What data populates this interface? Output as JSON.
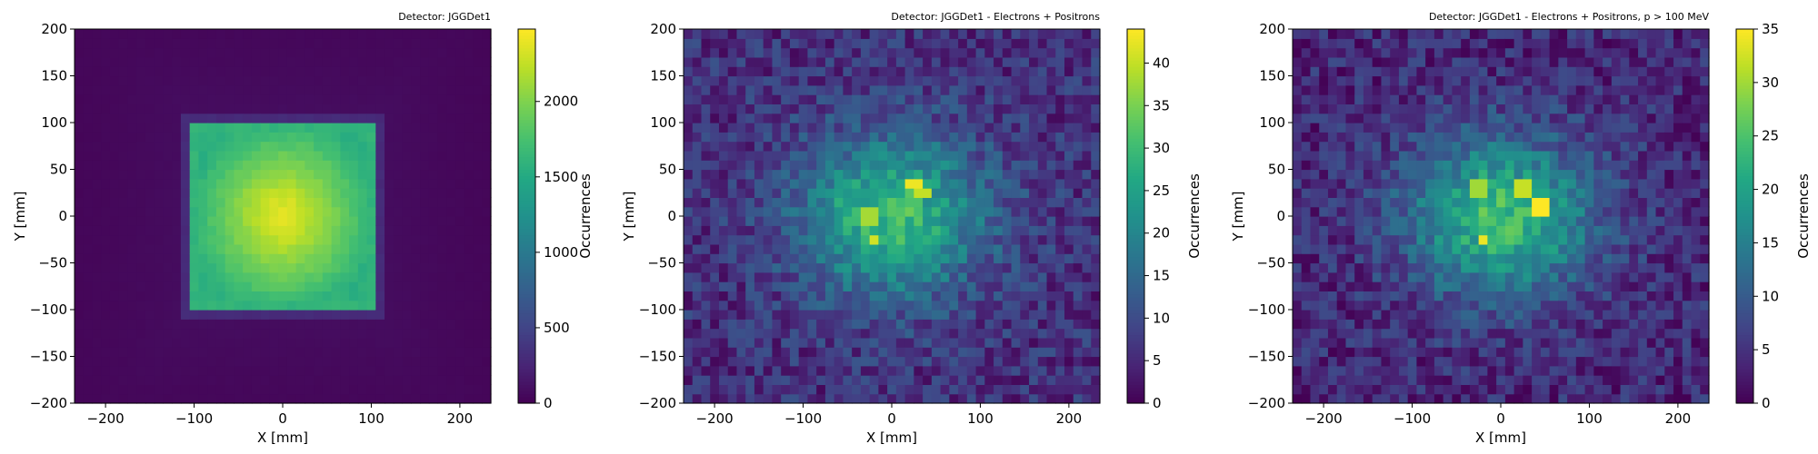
{
  "chart_data": [
    {
      "type": "heatmap",
      "title": "Detector: JGGDet1",
      "xlabel": "X [mm]",
      "ylabel": "Y [mm]",
      "colorbar_label": "Occurrences",
      "colormap": "viridis",
      "xlim": [
        -235,
        235
      ],
      "ylim": [
        -200,
        200
      ],
      "xticks": [
        -200,
        -100,
        0,
        100,
        200
      ],
      "yticks": [
        -200,
        -150,
        -100,
        -50,
        0,
        50,
        100,
        150,
        200
      ],
      "clim": [
        0,
        2480
      ],
      "cticks": [
        0,
        500,
        1000,
        1500,
        2000
      ],
      "bins": [
        47,
        40
      ],
      "distribution": {
        "shape": "square",
        "x_range": [
          -100,
          100
        ],
        "y_range": [
          -100,
          100
        ],
        "center": [
          0,
          0
        ],
        "peak": 2450,
        "edge": 1650,
        "halo": 300,
        "background": 80
      }
    },
    {
      "type": "heatmap",
      "title": "Detector: JGGDet1 - Electrons + Positrons",
      "xlabel": "X [mm]",
      "ylabel": "Y [mm]",
      "colorbar_label": "Occurrences",
      "colormap": "viridis",
      "xlim": [
        -235,
        235
      ],
      "ylim": [
        -200,
        200
      ],
      "xticks": [
        -200,
        -100,
        0,
        100,
        200
      ],
      "yticks": [
        -200,
        -150,
        -100,
        -50,
        0,
        50,
        100,
        150,
        200
      ],
      "clim": [
        0,
        44
      ],
      "cticks": [
        0,
        5,
        10,
        15,
        20,
        25,
        30,
        35,
        40
      ],
      "bins": [
        47,
        40
      ],
      "distribution": {
        "shape": "gaussian",
        "center": [
          0,
          0
        ],
        "sigma": [
          75,
          60
        ],
        "peak": 30,
        "background": 6,
        "hotspots": [
          {
            "x": 25,
            "y": 35,
            "value": 43
          },
          {
            "x": 35,
            "y": 25,
            "value": 40
          },
          {
            "x": -20,
            "y": -25,
            "value": 41
          },
          {
            "x": -25,
            "y": 0,
            "value": 38
          }
        ]
      }
    },
    {
      "type": "heatmap",
      "title": "Detector: JGGDet1 - Electrons + Positrons, p > 100 MeV",
      "xlabel": "X [mm]",
      "ylabel": "Y [mm]",
      "colorbar_label": "Occurrences",
      "colormap": "viridis",
      "xlim": [
        -235,
        235
      ],
      "ylim": [
        -200,
        200
      ],
      "xticks": [
        -200,
        -100,
        0,
        100,
        200
      ],
      "yticks": [
        -200,
        -150,
        -100,
        -50,
        0,
        50,
        100,
        150,
        200
      ],
      "clim": [
        0,
        35
      ],
      "cticks": [
        0,
        5,
        10,
        15,
        20,
        25,
        30,
        35
      ],
      "bins": [
        47,
        40
      ],
      "distribution": {
        "shape": "gaussian",
        "center": [
          0,
          0
        ],
        "sigma": [
          75,
          60
        ],
        "peak": 24,
        "background": 4,
        "hotspots": [
          {
            "x": 45,
            "y": 10,
            "value": 35
          },
          {
            "x": 25,
            "y": 30,
            "value": 32
          },
          {
            "x": -20,
            "y": -25,
            "value": 34
          },
          {
            "x": -25,
            "y": 30,
            "value": 30
          }
        ]
      }
    }
  ]
}
